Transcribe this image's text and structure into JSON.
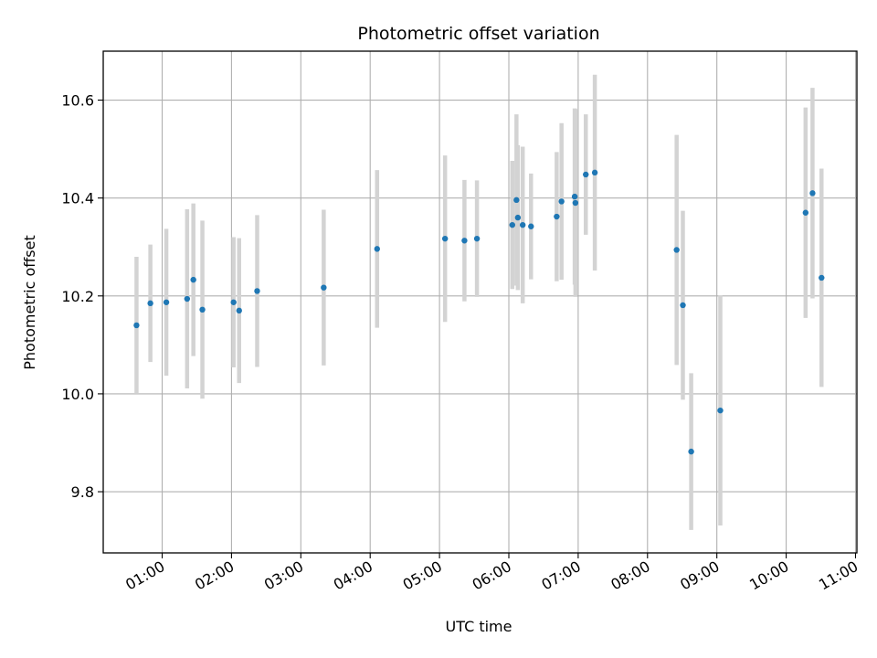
{
  "chart_data": {
    "type": "scatter",
    "title": "Photometric offset variation",
    "xlabel": "UTC time",
    "ylabel": "Photometric offset",
    "x_unit": "hours (UTC)",
    "xlim": [
      0.15,
      11.02
    ],
    "ylim": [
      9.675,
      10.7
    ],
    "grid": true,
    "x_ticks": [
      {
        "value": 1,
        "label": "01:00"
      },
      {
        "value": 2,
        "label": "02:00"
      },
      {
        "value": 3,
        "label": "03:00"
      },
      {
        "value": 4,
        "label": "04:00"
      },
      {
        "value": 5,
        "label": "05:00"
      },
      {
        "value": 6,
        "label": "06:00"
      },
      {
        "value": 7,
        "label": "07:00"
      },
      {
        "value": 8,
        "label": "08:00"
      },
      {
        "value": 9,
        "label": "09:00"
      },
      {
        "value": 10,
        "label": "10:00"
      },
      {
        "value": 11,
        "label": "11:00"
      }
    ],
    "y_ticks": [
      {
        "value": 9.8,
        "label": "9.8"
      },
      {
        "value": 10.0,
        "label": "10.0"
      },
      {
        "value": 10.2,
        "label": "10.2"
      },
      {
        "value": 10.4,
        "label": "10.4"
      },
      {
        "value": 10.6,
        "label": "10.6"
      }
    ],
    "colors": {
      "point": "#1f77b4",
      "errorbar": "#d3d3d3",
      "grid": "#b0b0b0"
    },
    "points": [
      {
        "x": 0.63,
        "y": 10.14,
        "err": 0.14
      },
      {
        "x": 0.83,
        "y": 10.185,
        "err": 0.12
      },
      {
        "x": 1.06,
        "y": 10.187,
        "err": 0.15
      },
      {
        "x": 1.36,
        "y": 10.194,
        "err": 0.183
      },
      {
        "x": 1.45,
        "y": 10.233,
        "err": 0.156
      },
      {
        "x": 1.58,
        "y": 10.172,
        "err": 0.182
      },
      {
        "x": 2.03,
        "y": 10.187,
        "err": 0.133
      },
      {
        "x": 2.11,
        "y": 10.17,
        "err": 0.148
      },
      {
        "x": 2.37,
        "y": 10.21,
        "err": 0.155
      },
      {
        "x": 3.33,
        "y": 10.217,
        "err": 0.159
      },
      {
        "x": 4.1,
        "y": 10.296,
        "err": 0.161
      },
      {
        "x": 5.08,
        "y": 10.317,
        "err": 0.17
      },
      {
        "x": 5.36,
        "y": 10.313,
        "err": 0.124
      },
      {
        "x": 5.54,
        "y": 10.317,
        "err": 0.119
      },
      {
        "x": 6.05,
        "y": 10.345,
        "err": 0.131
      },
      {
        "x": 6.11,
        "y": 10.396,
        "err": 0.175
      },
      {
        "x": 6.13,
        "y": 10.36,
        "err": 0.148
      },
      {
        "x": 6.2,
        "y": 10.345,
        "err": 0.16
      },
      {
        "x": 6.32,
        "y": 10.342,
        "err": 0.108
      },
      {
        "x": 6.69,
        "y": 10.362,
        "err": 0.132
      },
      {
        "x": 6.76,
        "y": 10.393,
        "err": 0.16
      },
      {
        "x": 6.95,
        "y": 10.403,
        "err": 0.18
      },
      {
        "x": 6.96,
        "y": 10.39,
        "err": 0.192
      },
      {
        "x": 7.11,
        "y": 10.448,
        "err": 0.123
      },
      {
        "x": 7.24,
        "y": 10.452,
        "err": 0.2
      },
      {
        "x": 8.42,
        "y": 10.294,
        "err": 0.235
      },
      {
        "x": 8.51,
        "y": 10.181,
        "err": 0.193
      },
      {
        "x": 8.63,
        "y": 9.882,
        "err": 0.16
      },
      {
        "x": 9.05,
        "y": 9.966,
        "err": 0.235
      },
      {
        "x": 10.28,
        "y": 10.37,
        "err": 0.215
      },
      {
        "x": 10.38,
        "y": 10.41,
        "err": 0.215
      },
      {
        "x": 10.51,
        "y": 10.237,
        "err": 0.223
      }
    ]
  }
}
